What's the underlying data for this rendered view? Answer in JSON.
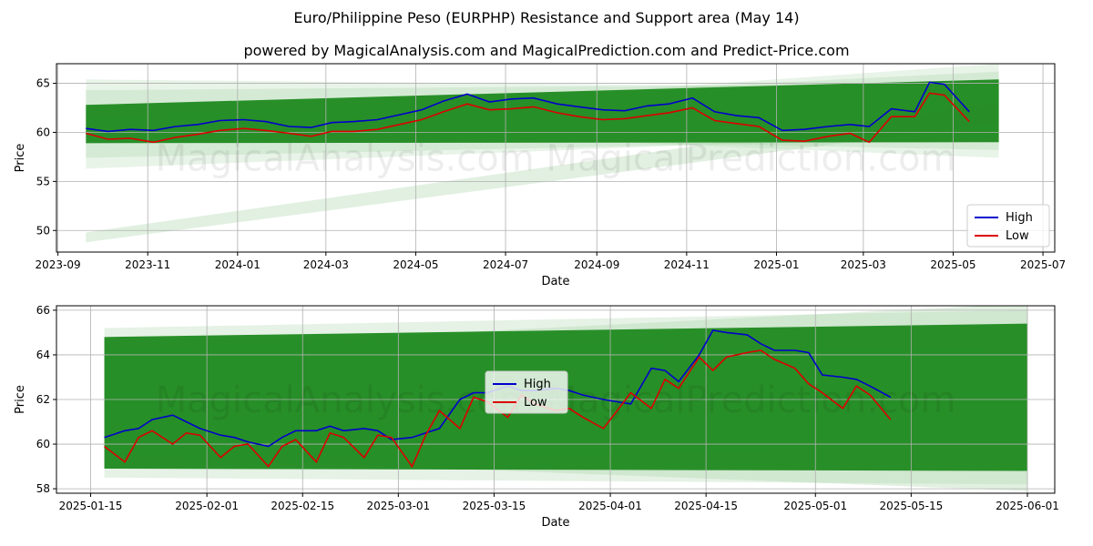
{
  "title": "Euro/Philippine Peso (EURPHP) Resistance and Support area (May 14)",
  "subtitle": "powered by MagicalAnalysis.com and MagicalPrediction.com and Predict-Price.com",
  "watermark": "MagicalAnalysis.com    MagicalPrediction.com",
  "colors": {
    "high": "#0000cc",
    "low": "#dd0000",
    "band": "#1f8a1f",
    "band_light": "#a8d4a8",
    "grid": "#b0b0b0"
  },
  "chart_data": [
    {
      "type": "line",
      "xlabel": "Date",
      "ylabel": "Price",
      "xlim": [
        "2023-08-31",
        "2025-07-09"
      ],
      "ylim": [
        47.8,
        67.0
      ],
      "yticks": [
        50,
        55,
        60,
        65
      ],
      "xticks": [
        "2023-09",
        "2023-11",
        "2024-01",
        "2024-03",
        "2024-05",
        "2024-07",
        "2024-09",
        "2024-11",
        "2025-01",
        "2025-03",
        "2025-05",
        "2025-07"
      ],
      "legend": {
        "position": "lower-right",
        "entries": [
          "High",
          "Low"
        ]
      },
      "grid": true,
      "band": {
        "x_start": "2023-09-20",
        "x_end": "2025-06-01",
        "support": [
          58.9,
          59.0
        ],
        "resistance": [
          62.8,
          65.4
        ]
      },
      "series": [
        {
          "name": "High",
          "x": [
            "2023-09-20",
            "2023-10-05",
            "2023-10-20",
            "2023-11-05",
            "2023-11-20",
            "2023-12-05",
            "2023-12-20",
            "2024-01-05",
            "2024-01-20",
            "2024-02-05",
            "2024-02-20",
            "2024-03-05",
            "2024-03-20",
            "2024-04-05",
            "2024-04-20",
            "2024-05-05",
            "2024-05-20",
            "2024-06-05",
            "2024-06-20",
            "2024-07-05",
            "2024-07-20",
            "2024-08-05",
            "2024-08-20",
            "2024-09-05",
            "2024-09-20",
            "2024-10-05",
            "2024-10-20",
            "2024-11-05",
            "2024-11-20",
            "2024-12-05",
            "2024-12-20",
            "2025-01-05",
            "2025-01-20",
            "2025-02-05",
            "2025-02-20",
            "2025-03-05",
            "2025-03-20",
            "2025-04-05",
            "2025-04-15",
            "2025-04-25",
            "2025-05-12"
          ],
          "values": [
            60.4,
            60.1,
            60.3,
            60.2,
            60.6,
            60.8,
            61.2,
            61.3,
            61.1,
            60.6,
            60.5,
            61.0,
            61.1,
            61.3,
            61.8,
            62.3,
            63.2,
            63.9,
            63.1,
            63.4,
            63.5,
            62.9,
            62.6,
            62.3,
            62.2,
            62.7,
            62.9,
            63.5,
            62.1,
            61.7,
            61.5,
            60.2,
            60.3,
            60.6,
            60.8,
            60.6,
            62.4,
            62.1,
            65.1,
            64.9,
            62.1
          ]
        },
        {
          "name": "Low",
          "x": [
            "2023-09-20",
            "2023-10-05",
            "2023-10-20",
            "2023-11-05",
            "2023-11-20",
            "2023-12-05",
            "2023-12-20",
            "2024-01-05",
            "2024-01-20",
            "2024-02-05",
            "2024-02-20",
            "2024-03-05",
            "2024-03-20",
            "2024-04-05",
            "2024-04-20",
            "2024-05-05",
            "2024-05-20",
            "2024-06-05",
            "2024-06-20",
            "2024-07-05",
            "2024-07-20",
            "2024-08-05",
            "2024-08-20",
            "2024-09-05",
            "2024-09-20",
            "2024-10-05",
            "2024-10-20",
            "2024-11-05",
            "2024-11-20",
            "2024-12-05",
            "2024-12-20",
            "2025-01-05",
            "2025-01-20",
            "2025-02-05",
            "2025-02-20",
            "2025-03-05",
            "2025-03-20",
            "2025-04-05",
            "2025-04-15",
            "2025-04-25",
            "2025-05-12"
          ],
          "values": [
            59.9,
            59.3,
            59.4,
            59.0,
            59.5,
            59.8,
            60.2,
            60.4,
            60.2,
            59.9,
            59.6,
            60.1,
            60.1,
            60.3,
            60.8,
            61.3,
            62.1,
            62.9,
            62.3,
            62.4,
            62.6,
            62.0,
            61.6,
            61.3,
            61.4,
            61.7,
            62.0,
            62.5,
            61.2,
            60.9,
            60.6,
            59.2,
            59.1,
            59.6,
            59.9,
            59.0,
            61.6,
            61.6,
            64.0,
            63.8,
            61.1
          ]
        }
      ]
    },
    {
      "type": "line",
      "xlabel": "Date",
      "ylabel": "Price",
      "xlim": [
        "2025-01-10",
        "2025-06-05"
      ],
      "ylim": [
        57.8,
        66.2
      ],
      "yticks": [
        58,
        60,
        62,
        64,
        66
      ],
      "xticks": [
        "2025-01-15",
        "2025-02-01",
        "2025-02-15",
        "2025-03-01",
        "2025-03-15",
        "2025-04-01",
        "2025-04-15",
        "2025-05-01",
        "2025-05-15",
        "2025-06-01"
      ],
      "legend": {
        "position": "center",
        "entries": [
          "High",
          "Low"
        ]
      },
      "grid": true,
      "band": {
        "x_start": "2025-01-17",
        "x_end": "2025-06-01",
        "support": [
          58.9,
          58.8
        ],
        "resistance": [
          64.8,
          65.4
        ]
      },
      "series": [
        {
          "name": "High",
          "x": [
            "2025-01-17",
            "2025-01-20",
            "2025-01-22",
            "2025-01-24",
            "2025-01-27",
            "2025-01-29",
            "2025-01-31",
            "2025-02-03",
            "2025-02-05",
            "2025-02-07",
            "2025-02-10",
            "2025-02-12",
            "2025-02-14",
            "2025-02-17",
            "2025-02-19",
            "2025-02-21",
            "2025-02-24",
            "2025-02-26",
            "2025-02-28",
            "2025-03-03",
            "2025-03-05",
            "2025-03-07",
            "2025-03-10",
            "2025-03-12",
            "2025-03-14",
            "2025-03-17",
            "2025-03-19",
            "2025-03-21",
            "2025-03-24",
            "2025-03-26",
            "2025-03-28",
            "2025-03-31",
            "2025-04-02",
            "2025-04-04",
            "2025-04-07",
            "2025-04-09",
            "2025-04-11",
            "2025-04-14",
            "2025-04-16",
            "2025-04-18",
            "2025-04-21",
            "2025-04-23",
            "2025-04-25",
            "2025-04-28",
            "2025-04-30",
            "2025-05-02",
            "2025-05-05",
            "2025-05-07",
            "2025-05-09",
            "2025-05-12"
          ],
          "values": [
            60.3,
            60.6,
            60.7,
            61.1,
            61.3,
            61.0,
            60.7,
            60.4,
            60.3,
            60.1,
            59.9,
            60.3,
            60.6,
            60.6,
            60.8,
            60.6,
            60.7,
            60.6,
            60.2,
            60.3,
            60.5,
            60.7,
            62.0,
            62.3,
            62.3,
            62.6,
            62.4,
            62.4,
            62.5,
            62.4,
            62.2,
            62.0,
            61.9,
            61.8,
            63.4,
            63.3,
            62.8,
            64.0,
            65.1,
            65.0,
            64.9,
            64.5,
            64.2,
            64.2,
            64.1,
            63.1,
            63.0,
            62.9,
            62.6,
            62.1
          ]
        },
        {
          "name": "Low",
          "x": [
            "2025-01-17",
            "2025-01-20",
            "2025-01-22",
            "2025-01-24",
            "2025-01-27",
            "2025-01-29",
            "2025-01-31",
            "2025-02-03",
            "2025-02-05",
            "2025-02-07",
            "2025-02-10",
            "2025-02-12",
            "2025-02-14",
            "2025-02-17",
            "2025-02-19",
            "2025-02-21",
            "2025-02-24",
            "2025-02-26",
            "2025-02-28",
            "2025-03-03",
            "2025-03-05",
            "2025-03-07",
            "2025-03-10",
            "2025-03-12",
            "2025-03-14",
            "2025-03-17",
            "2025-03-19",
            "2025-03-21",
            "2025-03-24",
            "2025-03-26",
            "2025-03-28",
            "2025-03-31",
            "2025-04-02",
            "2025-04-04",
            "2025-04-07",
            "2025-04-09",
            "2025-04-11",
            "2025-04-14",
            "2025-04-16",
            "2025-04-18",
            "2025-04-21",
            "2025-04-23",
            "2025-04-25",
            "2025-04-28",
            "2025-04-30",
            "2025-05-02",
            "2025-05-05",
            "2025-05-07",
            "2025-05-09",
            "2025-05-12"
          ],
          "values": [
            59.9,
            59.2,
            60.3,
            60.6,
            60.0,
            60.5,
            60.4,
            59.4,
            59.9,
            60.0,
            59.0,
            59.9,
            60.2,
            59.2,
            60.5,
            60.3,
            59.4,
            60.4,
            60.3,
            59.0,
            60.4,
            61.5,
            60.7,
            62.1,
            61.9,
            61.2,
            62.2,
            61.8,
            61.5,
            61.6,
            61.2,
            60.7,
            61.5,
            62.3,
            61.6,
            62.9,
            62.5,
            63.9,
            63.3,
            63.9,
            64.1,
            64.2,
            63.8,
            63.4,
            62.7,
            62.3,
            61.6,
            62.6,
            62.2,
            61.1
          ]
        }
      ]
    }
  ]
}
